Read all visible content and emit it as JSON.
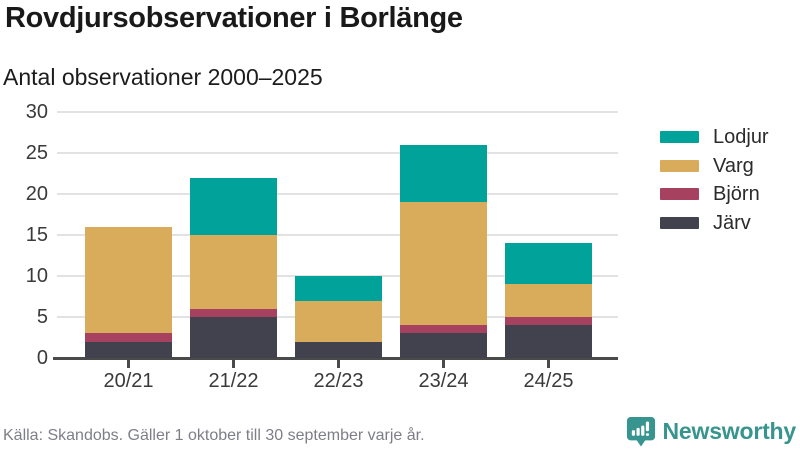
{
  "chart_data": {
    "type": "bar",
    "stacked": true,
    "title": "Rovdjursobservationer i Borlänge",
    "subtitle": "Antal observationer 2000–2025",
    "categories": [
      "20/21",
      "21/22",
      "22/23",
      "23/24",
      "24/25"
    ],
    "series": [
      {
        "name": "Järv",
        "key": "jarv",
        "color": "#42414E",
        "values": [
          2,
          5,
          2,
          3,
          4
        ]
      },
      {
        "name": "Björn",
        "key": "bjorn",
        "color": "#A6425F",
        "values": [
          1,
          1,
          0,
          1,
          1
        ]
      },
      {
        "name": "Varg",
        "key": "varg",
        "color": "#D9AC5B",
        "values": [
          13,
          9,
          5,
          15,
          4
        ]
      },
      {
        "name": "Lodjur",
        "key": "lodjur",
        "color": "#00A29A",
        "values": [
          0,
          7,
          3,
          7,
          5
        ]
      }
    ],
    "totals": [
      16,
      22,
      10,
      26,
      14
    ],
    "y_ticks": [
      0,
      5,
      10,
      15,
      20,
      25,
      30
    ],
    "ylim": [
      0,
      30
    ],
    "grid": true,
    "legend_position": "right",
    "legend_order": [
      "Lodjur",
      "Varg",
      "Björn",
      "Järv"
    ],
    "colors": {
      "grid": "#e2e2e2",
      "axis": "#4a4a4a",
      "tick_text": "#3a3a3a"
    }
  },
  "footer": {
    "source": "Källa: Skandobs. Gäller 1 oktober till 30 september varje år.",
    "brand": "Newsworthy",
    "brand_color": "#38948e"
  }
}
